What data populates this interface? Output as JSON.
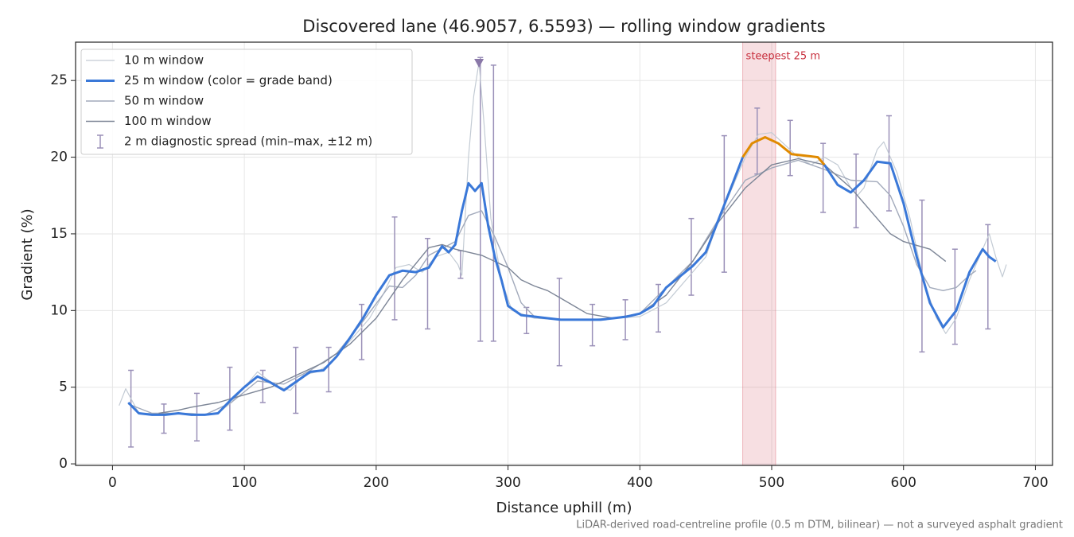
{
  "chart_data": {
    "type": "line",
    "title": "Discovered lane (46.9057, 6.5593) — rolling window gradients",
    "xlabel": "Distance uphill (m)",
    "ylabel": "Gradient (%)",
    "footnote": "LiDAR-derived road-centreline profile (0.5 m DTM, bilinear) — not a surveyed asphalt gradient",
    "xlim": [
      -28,
      713
    ],
    "ylim": [
      -0.1,
      27.5
    ],
    "xticks": [
      0,
      100,
      200,
      300,
      400,
      500,
      600,
      700
    ],
    "yticks": [
      0,
      5,
      10,
      15,
      20,
      25
    ],
    "grid": true,
    "legend": "upper-left",
    "grade_band_threshold": 20,
    "grade_band_color": "#e08a00",
    "series": [
      {
        "name": "10 m window",
        "color": "#c3cbd4",
        "width": 1.2,
        "x": [
          5,
          10,
          20,
          30,
          40,
          50,
          60,
          70,
          80,
          90,
          105,
          110,
          125,
          135,
          145,
          155,
          165,
          180,
          195,
          205,
          215,
          225,
          235,
          245,
          255,
          262,
          265,
          270,
          274,
          278,
          282,
          287,
          295,
          303,
          320,
          340,
          360,
          380,
          400,
          420,
          440,
          450,
          460,
          470,
          480,
          490,
          500,
          510,
          520,
          530,
          540,
          550,
          560,
          565,
          570,
          580,
          585,
          595,
          605,
          615,
          625,
          632,
          640,
          650,
          665,
          670,
          675,
          678
        ],
        "values": [
          3.8,
          4.9,
          3.3,
          3.3,
          3.3,
          3.3,
          3.3,
          3.2,
          3.3,
          4.0,
          5.5,
          6.0,
          5.0,
          4.8,
          5.8,
          6.0,
          6.5,
          8.0,
          9.5,
          11.0,
          12.8,
          13.0,
          12.5,
          13.5,
          13.8,
          13.0,
          12.3,
          20.0,
          24.0,
          26.2,
          22.0,
          16.0,
          12.0,
          10.0,
          9.5,
          9.4,
          9.4,
          9.5,
          9.6,
          10.5,
          12.5,
          13.5,
          16.0,
          18.0,
          20.0,
          21.5,
          21.6,
          20.8,
          20.0,
          19.5,
          20.0,
          19.5,
          18.0,
          17.5,
          18.0,
          20.5,
          21.0,
          19.0,
          16.0,
          12.0,
          9.5,
          8.5,
          9.5,
          12.0,
          15.0,
          13.5,
          12.2,
          13.0
        ]
      },
      {
        "name": "25 m window (color = grade band)",
        "color": "#3a78d8",
        "width": 3,
        "banded": true,
        "x": [
          12,
          20,
          30,
          40,
          50,
          60,
          70,
          80,
          90,
          100,
          110,
          120,
          130,
          140,
          150,
          160,
          170,
          180,
          190,
          200,
          210,
          220,
          230,
          240,
          250,
          255,
          260,
          265,
          270,
          275,
          280,
          285,
          290,
          295,
          300,
          310,
          320,
          330,
          340,
          350,
          360,
          370,
          380,
          390,
          400,
          410,
          420,
          430,
          440,
          450,
          460,
          470,
          478,
          485,
          495,
          505,
          515,
          525,
          535,
          540,
          550,
          560,
          570,
          580,
          590,
          600,
          610,
          620,
          630,
          640,
          650,
          660,
          665,
          670
        ],
        "values": [
          4.0,
          3.3,
          3.2,
          3.2,
          3.3,
          3.2,
          3.2,
          3.3,
          4.2,
          5.0,
          5.7,
          5.3,
          4.8,
          5.4,
          6.0,
          6.1,
          7.0,
          8.2,
          9.5,
          11.0,
          12.3,
          12.6,
          12.5,
          12.8,
          14.2,
          13.8,
          14.3,
          16.5,
          18.3,
          17.8,
          18.3,
          15.5,
          13.5,
          12.0,
          10.3,
          9.7,
          9.6,
          9.5,
          9.4,
          9.4,
          9.4,
          9.4,
          9.5,
          9.6,
          9.8,
          10.3,
          11.5,
          12.2,
          12.9,
          13.8,
          16.0,
          18.2,
          20.0,
          20.9,
          21.3,
          20.9,
          20.2,
          20.1,
          20.0,
          19.5,
          18.2,
          17.7,
          18.5,
          19.7,
          19.6,
          17.0,
          13.5,
          10.5,
          8.9,
          10.0,
          12.5,
          14.0,
          13.5,
          13.2
        ]
      },
      {
        "name": "50 m window",
        "color": "#a2aabb",
        "width": 1.4,
        "x": [
          12,
          30,
          50,
          70,
          90,
          110,
          130,
          150,
          170,
          190,
          210,
          220,
          230,
          240,
          260,
          270,
          280,
          290,
          300,
          310,
          320,
          340,
          360,
          380,
          400,
          420,
          440,
          460,
          480,
          500,
          520,
          540,
          560,
          580,
          590,
          600,
          610,
          620,
          630,
          640,
          650,
          655
        ],
        "values": [
          3.9,
          3.3,
          3.3,
          3.2,
          4.0,
          5.4,
          5.2,
          6.1,
          7.2,
          9.3,
          11.6,
          11.5,
          12.3,
          13.6,
          14.5,
          16.2,
          16.5,
          14.8,
          12.8,
          10.5,
          9.6,
          9.4,
          9.4,
          9.5,
          9.8,
          11.5,
          13.2,
          16.0,
          18.5,
          19.3,
          19.8,
          19.2,
          18.5,
          18.4,
          17.5,
          15.5,
          13.0,
          11.5,
          11.3,
          11.5,
          12.3,
          12.6
        ]
      },
      {
        "name": "100 m window",
        "color": "#7c8596",
        "width": 1.4,
        "x": [
          35,
          50,
          60,
          80,
          100,
          120,
          140,
          160,
          180,
          200,
          220,
          240,
          250,
          260,
          280,
          300,
          310,
          320,
          330,
          340,
          350,
          360,
          380,
          400,
          420,
          440,
          460,
          480,
          500,
          520,
          540,
          560,
          580,
          590,
          600,
          620,
          632
        ],
        "values": [
          3.3,
          3.5,
          3.7,
          4.0,
          4.5,
          5.0,
          5.8,
          6.6,
          7.8,
          9.5,
          12.0,
          14.1,
          14.3,
          14.0,
          13.6,
          12.8,
          12.0,
          11.6,
          11.3,
          10.8,
          10.3,
          9.8,
          9.5,
          9.8,
          11.0,
          13.2,
          15.8,
          18.0,
          19.5,
          19.9,
          19.5,
          18.0,
          16.0,
          15.0,
          14.5,
          14.0,
          13.2
        ]
      }
    ],
    "errorbars": {
      "name": "2 m diagnostic spread (min–max, ±12 m)",
      "color": "#9a90b8",
      "x": [
        14,
        39,
        64,
        89,
        114,
        139,
        164,
        189,
        214,
        239,
        264,
        279,
        289,
        314,
        339,
        364,
        389,
        414,
        439,
        464,
        489,
        514,
        539,
        564,
        589,
        614,
        639,
        664
      ],
      "low": [
        1.1,
        2.0,
        1.5,
        2.2,
        4.0,
        3.3,
        4.7,
        6.8,
        9.4,
        8.8,
        12.1,
        8.0,
        8.0,
        8.5,
        6.4,
        7.7,
        8.1,
        8.6,
        11.0,
        12.5,
        18.9,
        18.8,
        16.4,
        15.4,
        16.5,
        7.3,
        7.8,
        8.8
      ],
      "high": [
        6.1,
        3.9,
        4.6,
        6.3,
        6.1,
        7.6,
        7.6,
        10.4,
        16.1,
        14.7,
        13.9,
        26.5,
        26.0,
        10.2,
        12.1,
        10.4,
        10.7,
        11.7,
        16.0,
        21.4,
        23.2,
        22.4,
        20.9,
        20.2,
        22.7,
        17.2,
        14.0,
        15.6
      ]
    },
    "highlight": {
      "label": "steepest 25 m",
      "span": [
        478,
        503
      ],
      "color": "#d9606e"
    },
    "peak_marker": {
      "x": 278,
      "y": 26.1,
      "color": "#8a78a8"
    }
  }
}
